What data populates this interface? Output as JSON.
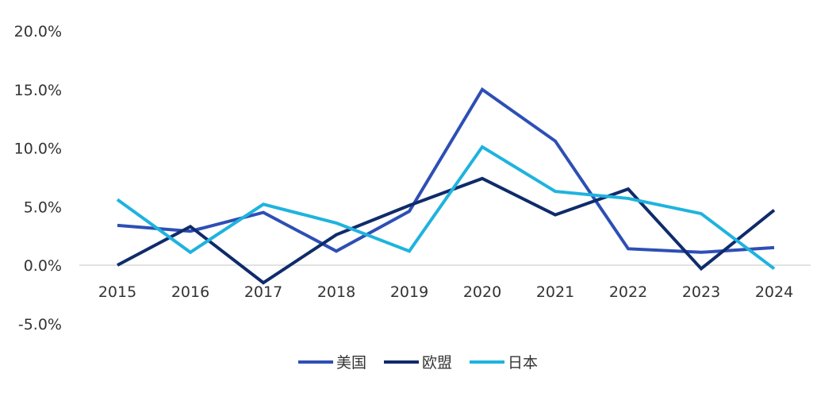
{
  "chart_data": {
    "type": "line",
    "title": "",
    "xlabel": "",
    "ylabel": "",
    "ylim": [
      -5.0,
      20.0
    ],
    "yticks": [
      -5.0,
      0.0,
      5.0,
      10.0,
      15.0,
      20.0
    ],
    "ytick_labels": [
      "-5.0%",
      "0.0%",
      "5.0%",
      "10.0%",
      "15.0%",
      "20.0%"
    ],
    "categories": [
      "2015",
      "2016",
      "2017",
      "2018",
      "2019",
      "2020",
      "2021",
      "2022",
      "2023",
      "2024"
    ],
    "grid": false,
    "legend_position": "bottom-center",
    "series": [
      {
        "name": "美国",
        "color": "#2d4fb5",
        "values": [
          3.4,
          2.9,
          4.5,
          1.2,
          4.6,
          15.0,
          10.6,
          1.4,
          1.1,
          1.5
        ]
      },
      {
        "name": "欧盟",
        "color": "#0f2b6b",
        "values": [
          0.0,
          3.3,
          -1.5,
          2.6,
          5.1,
          7.4,
          4.3,
          6.5,
          -0.3,
          4.7
        ]
      },
      {
        "name": "日本",
        "color": "#1fb3de",
        "values": [
          5.6,
          1.1,
          5.2,
          3.6,
          1.2,
          10.1,
          6.3,
          5.7,
          4.4,
          -0.3
        ]
      }
    ]
  }
}
